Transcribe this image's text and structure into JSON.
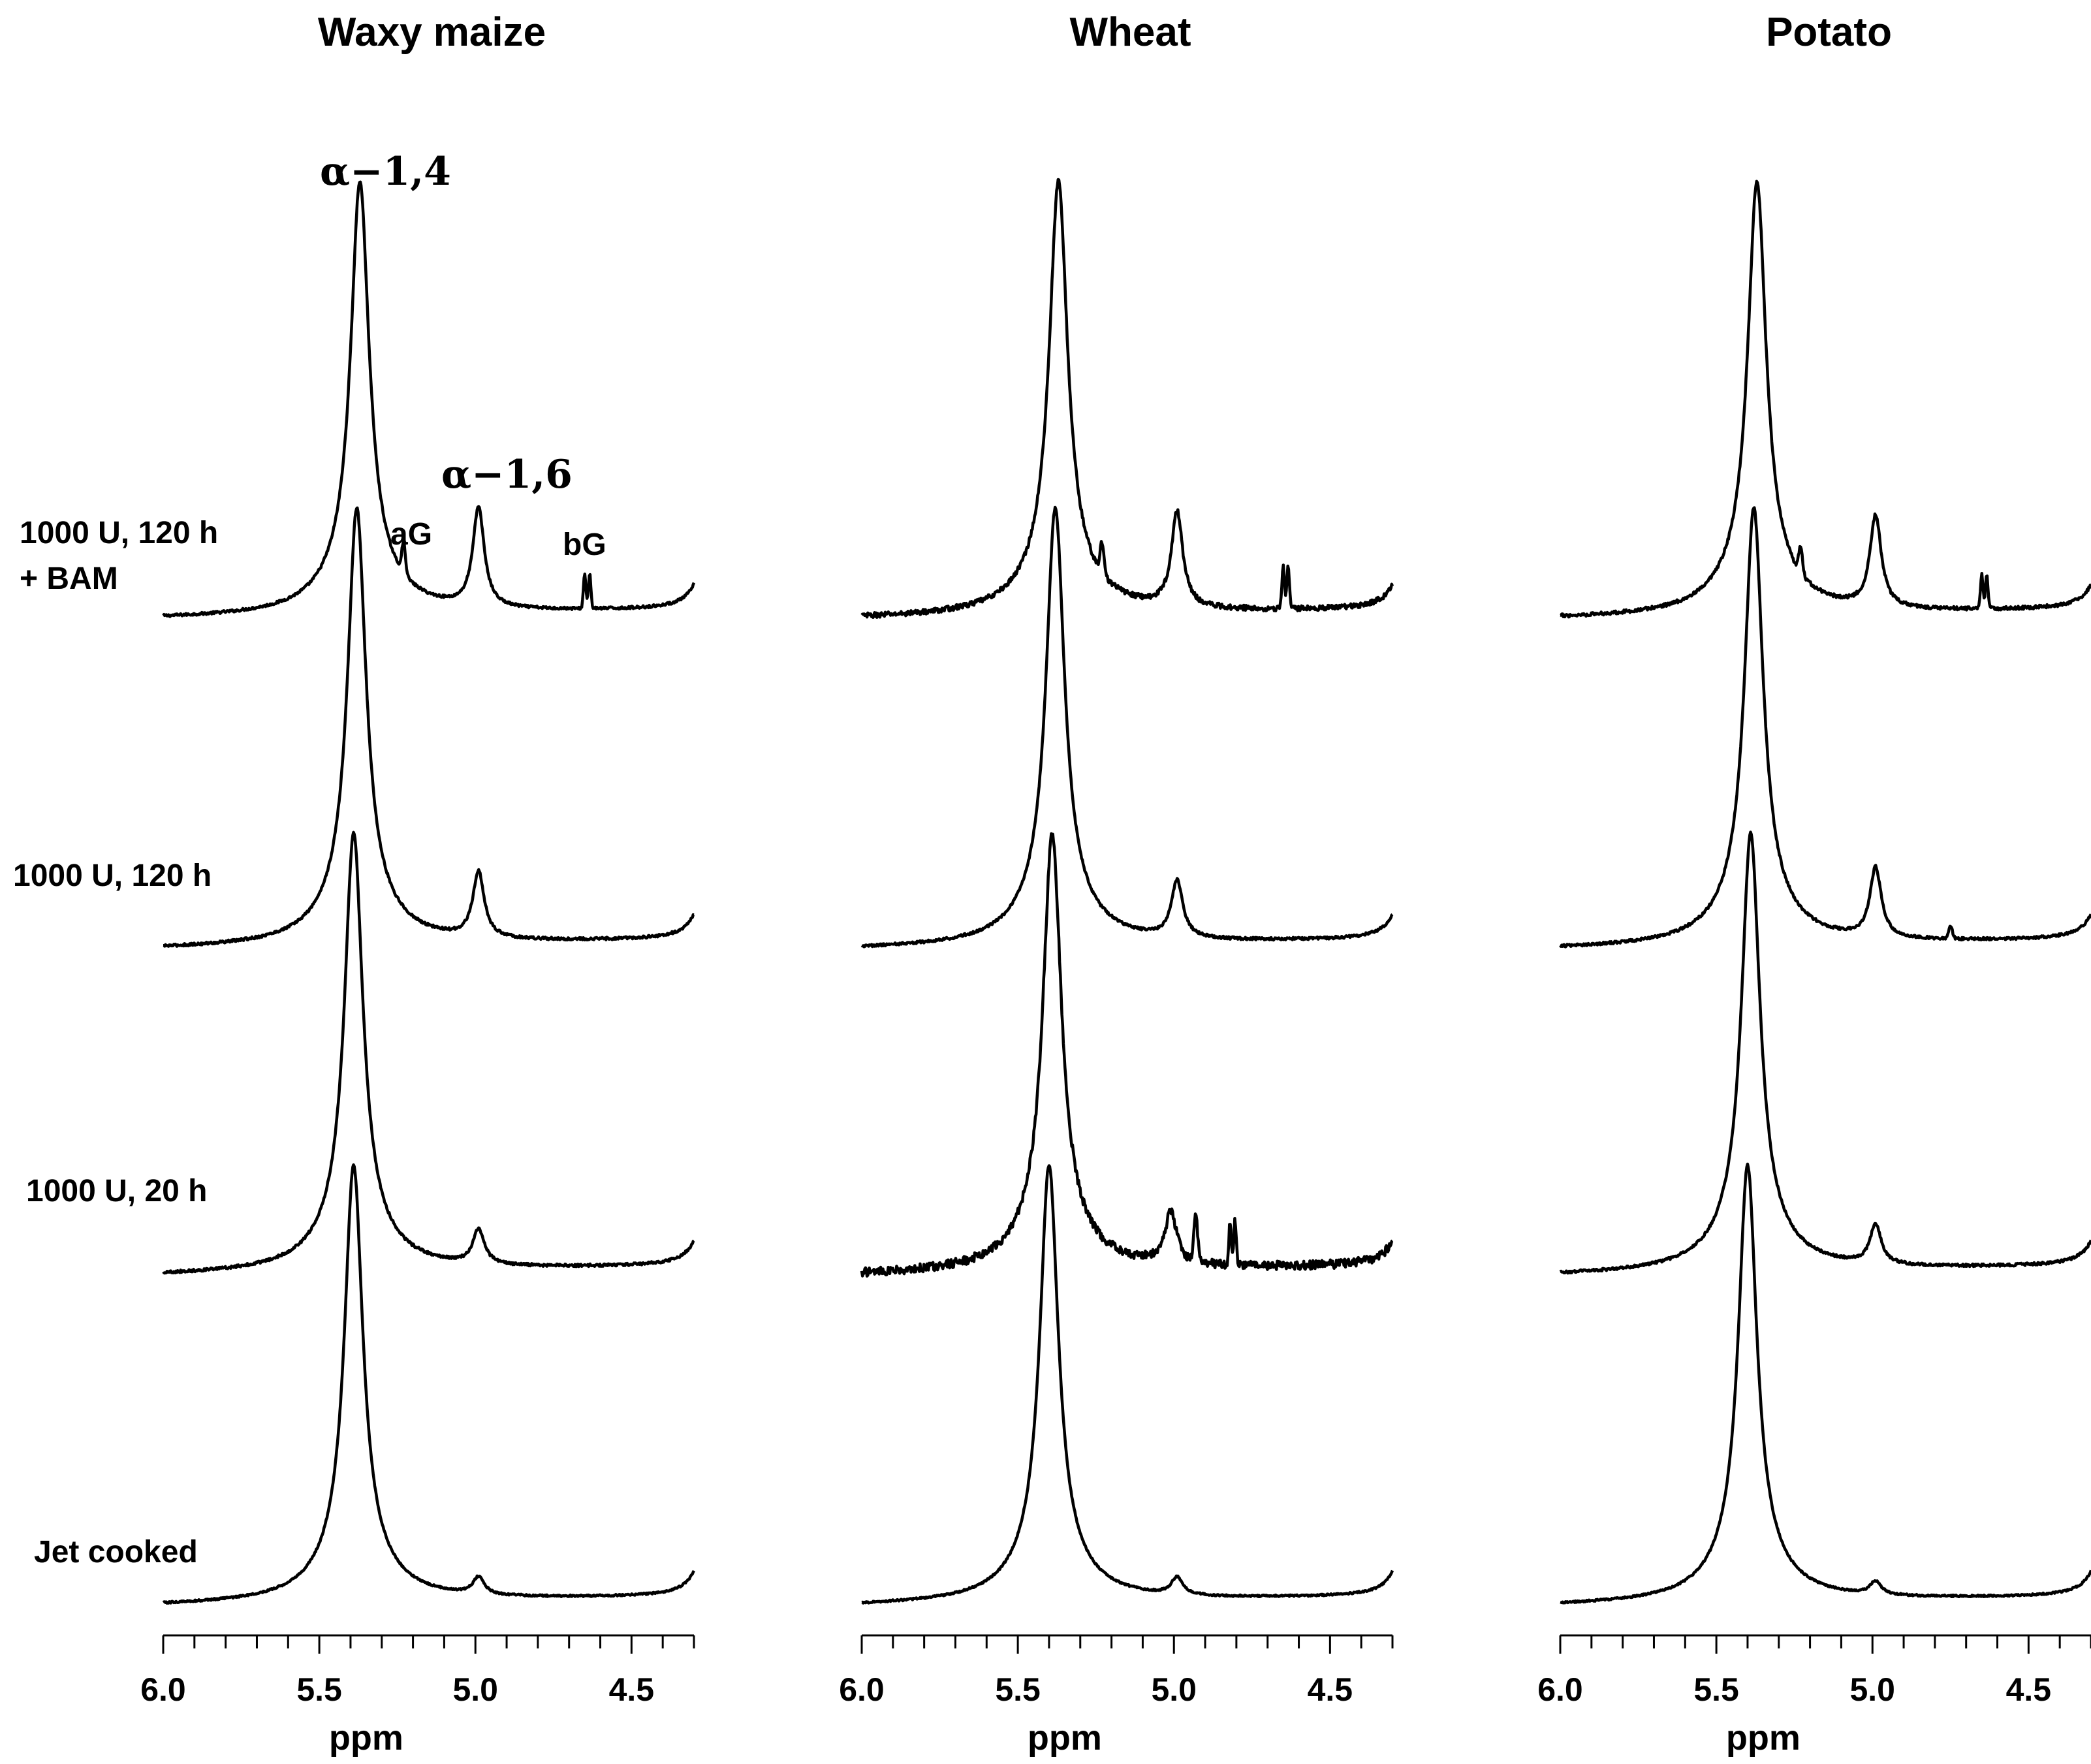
{
  "chart_data": {
    "type": "line",
    "description_ylabel": "",
    "xlabel": "ppm",
    "xlim": [
      6.0,
      4.3
    ],
    "x_ticks": [
      "6.0",
      "5.5",
      "5.0",
      "4.5"
    ],
    "conditions": [
      "1000 U, 120 h\n+ BAM",
      "1000 U, 120 h",
      "1000 U, 20 h",
      "Jet cooked"
    ],
    "annotations": {
      "a14": "α−1,4",
      "a16": "α−1,6",
      "aG": "aG",
      "bG": "bG"
    },
    "panels": [
      {
        "title": "Waxy maize",
        "series": [
          {
            "condition": "1000 U, 120 h\n+ BAM",
            "peak_alpha14_ppm": 5.37,
            "peak_alpha16_ppm": 4.99,
            "alpha16_rel": 0.23,
            "aG_ppm": 5.23,
            "aG_rel": 0.07,
            "bG_ppm": 4.65,
            "bG_rel": 0.08,
            "noise": 0.006
          },
          {
            "condition": "1000 U, 120 h",
            "peak_alpha14_ppm": 5.38,
            "peak_alpha16_ppm": 4.99,
            "alpha16_rel": 0.15,
            "aG_ppm": null,
            "aG_rel": 0,
            "bG_ppm": null,
            "bG_rel": 0,
            "noise": 0.006
          },
          {
            "condition": "1000 U, 20 h",
            "peak_alpha14_ppm": 5.39,
            "peak_alpha16_ppm": 4.99,
            "alpha16_rel": 0.08,
            "aG_ppm": null,
            "aG_rel": 0,
            "bG_ppm": null,
            "bG_rel": 0,
            "noise": 0.006
          },
          {
            "condition": "Jet cooked",
            "peak_alpha14_ppm": 5.39,
            "peak_alpha16_ppm": 4.99,
            "alpha16_rel": 0.04,
            "aG_ppm": null,
            "aG_rel": 0,
            "bG_ppm": null,
            "bG_rel": 0,
            "noise": 0.004
          }
        ]
      },
      {
        "title": "Wheat",
        "series": [
          {
            "condition": "1000 U, 120 h\n+ BAM",
            "peak_alpha14_ppm": 5.37,
            "peak_alpha16_ppm": 4.99,
            "alpha16_rel": 0.22,
            "aG_ppm": 5.23,
            "aG_rel": 0.07,
            "bG_ppm": 4.65,
            "bG_rel": 0.1,
            "noise": 0.012
          },
          {
            "condition": "1000 U, 120 h",
            "peak_alpha14_ppm": 5.38,
            "peak_alpha16_ppm": 4.99,
            "alpha16_rel": 0.13,
            "aG_ppm": null,
            "aG_rel": 0,
            "bG_ppm": null,
            "bG_rel": 0,
            "noise": 0.006
          },
          {
            "condition": "1000 U, 20 h",
            "peak_alpha14_ppm": 5.39,
            "peak_alpha16_ppm": 5.01,
            "alpha16_rel": 0.12,
            "aG_ppm": 4.93,
            "aG_rel": 0.1,
            "bG_ppm": 4.82,
            "bG_rel": 0.1,
            "noise": 0.02
          },
          {
            "condition": "Jet cooked",
            "peak_alpha14_ppm": 5.4,
            "peak_alpha16_ppm": 4.99,
            "alpha16_rel": 0.04,
            "aG_ppm": null,
            "aG_rel": 0,
            "bG_ppm": null,
            "bG_rel": 0,
            "noise": 0.004
          }
        ]
      },
      {
        "title": "Potato",
        "series": [
          {
            "condition": "1000 U, 120 h\n+ BAM",
            "peak_alpha14_ppm": 5.37,
            "peak_alpha16_ppm": 4.99,
            "alpha16_rel": 0.21,
            "aG_ppm": 5.23,
            "aG_rel": 0.06,
            "bG_ppm": 4.65,
            "bG_rel": 0.08,
            "noise": 0.008
          },
          {
            "condition": "1000 U, 120 h",
            "peak_alpha14_ppm": 5.38,
            "peak_alpha16_ppm": 4.99,
            "alpha16_rel": 0.16,
            "aG_ppm": 4.75,
            "aG_rel": 0.03,
            "bG_ppm": null,
            "bG_rel": 0,
            "noise": 0.006
          },
          {
            "condition": "1000 U, 20 h",
            "peak_alpha14_ppm": 5.39,
            "peak_alpha16_ppm": 4.99,
            "alpha16_rel": 0.09,
            "aG_ppm": null,
            "aG_rel": 0,
            "bG_ppm": null,
            "bG_rel": 0,
            "noise": 0.006
          },
          {
            "condition": "Jet cooked",
            "peak_alpha14_ppm": 5.4,
            "peak_alpha16_ppm": 4.99,
            "alpha16_rel": 0.03,
            "aG_ppm": null,
            "aG_rel": 0,
            "bG_ppm": null,
            "bG_rel": 0,
            "noise": 0.004
          }
        ]
      }
    ]
  }
}
